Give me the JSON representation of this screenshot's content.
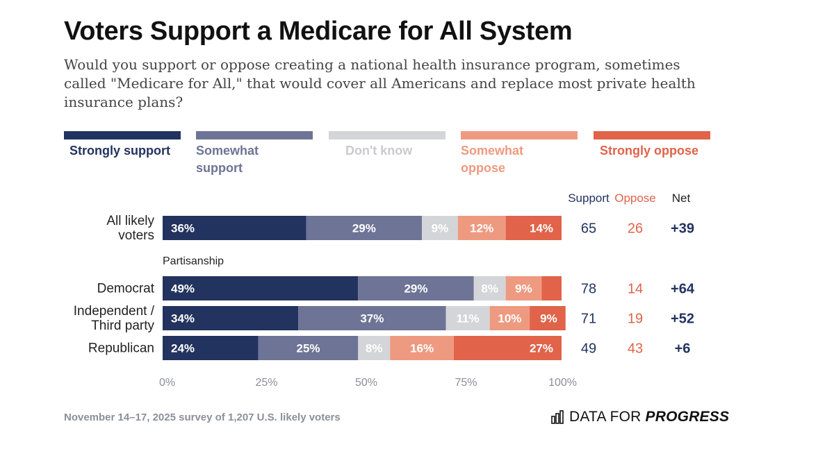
{
  "title": "Voters Support a Medicare for All System",
  "subtitle": "Would you support or oppose creating a national health insurance program, sometimes called \"Medicare for All,\" that would cover all Americans and replace most private health insurance plans?",
  "colors": {
    "strongly_support": "#22335f",
    "somewhat_support": "#6d7496",
    "dont_know": "#d4d5d9",
    "somewhat_oppose": "#ee9a80",
    "strongly_oppose": "#e0634a",
    "support_text": "#22335f",
    "oppose_text": "#e0634a"
  },
  "legend": [
    {
      "label": "Strongly support",
      "color": "#22335f"
    },
    {
      "label": "Somewhat support",
      "color": "#6d7496"
    },
    {
      "label": "Don't know",
      "color": "#d4d5d9"
    },
    {
      "label": "Somewhat oppose",
      "color": "#ee9a80"
    },
    {
      "label": "Strongly oppose",
      "color": "#e0634a"
    }
  ],
  "chart_data": {
    "type": "bar",
    "orientation": "horizontal",
    "stacked": true,
    "xlim": [
      0,
      100
    ],
    "x_ticks": [
      "0%",
      "25%",
      "50%",
      "75%",
      "100%"
    ],
    "column_headers": {
      "support": "Support",
      "oppose": "Oppose",
      "net": "Net"
    },
    "section_label": "Partisanship",
    "series_names": [
      "Strongly support",
      "Somewhat support",
      "Don't know",
      "Somewhat oppose",
      "Strongly oppose"
    ],
    "rows": [
      {
        "label": [
          "All likely",
          "voters"
        ],
        "values": [
          36,
          29,
          9,
          12,
          14
        ],
        "value_labels": [
          "36%",
          "29%",
          "9%",
          "12%",
          "14%"
        ],
        "support": "65",
        "oppose": "26",
        "net": "+39"
      },
      {
        "label": [
          "Democrat"
        ],
        "values": [
          49,
          29,
          8,
          9,
          5
        ],
        "value_labels": [
          "49%",
          "29%",
          "8%",
          "9%",
          ""
        ],
        "support": "78",
        "oppose": "14",
        "net": "+64"
      },
      {
        "label": [
          "Independent /",
          "Third party"
        ],
        "values": [
          34,
          37,
          11,
          10,
          9
        ],
        "value_labels": [
          "34%",
          "37%",
          "11%",
          "10%",
          "9%"
        ],
        "support": "71",
        "oppose": "19",
        "net": "+52"
      },
      {
        "label": [
          "Republican"
        ],
        "values": [
          24,
          25,
          8,
          16,
          27
        ],
        "value_labels": [
          "24%",
          "25%",
          "8%",
          "16%",
          "27%"
        ],
        "support": "49",
        "oppose": "43",
        "net": "+6"
      }
    ]
  },
  "footer": {
    "source": "November 14–17, 2025 survey of 1,207 U.S. likely voters",
    "brand_plain": "DATA FOR ",
    "brand_bold": "PROGRESS"
  }
}
